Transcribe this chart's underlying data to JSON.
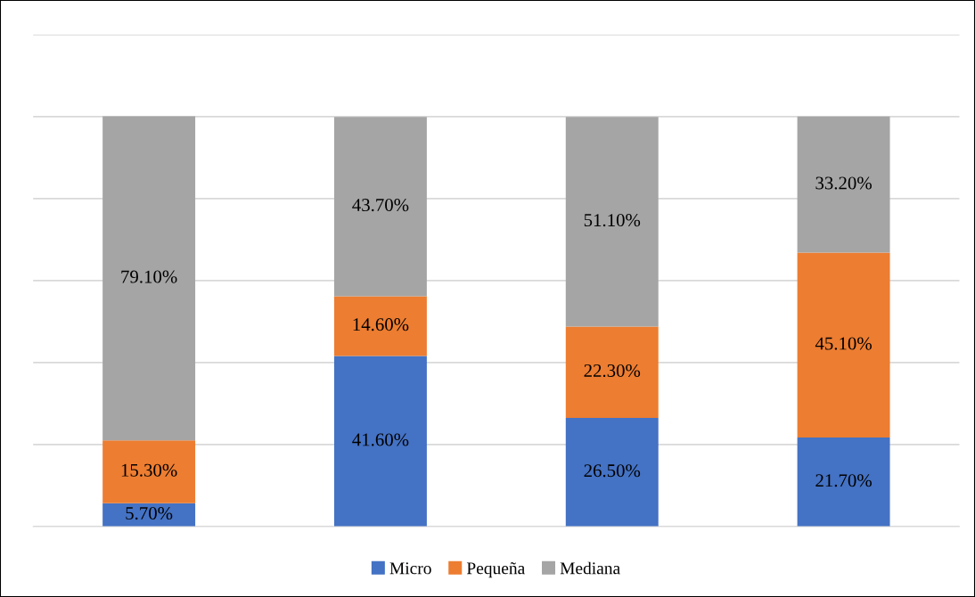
{
  "chart_data": {
    "type": "bar",
    "stacked": true,
    "categories": [
      null,
      null,
      null,
      null
    ],
    "series": [
      {
        "name": "Micro",
        "color": "#4472c4",
        "values": [
          5.7,
          41.6,
          26.5,
          21.7
        ],
        "value_labels": [
          "5.70%",
          "41.60%",
          "26.50%",
          "21.70%"
        ]
      },
      {
        "name": "Pequeña",
        "color": "#ed7d31",
        "values": [
          15.3,
          14.6,
          22.3,
          45.1
        ],
        "value_labels": [
          "15.30%",
          "14.60%",
          "22.30%",
          "45.10%"
        ]
      },
      {
        "name": "Mediana",
        "color": "#a5a5a5",
        "values": [
          79.1,
          43.7,
          51.1,
          33.2
        ],
        "value_labels": [
          "79.10%",
          "43.70%",
          "51.10%",
          "33.20%"
        ]
      }
    ],
    "ylim": [
      0,
      120
    ],
    "yticks": [
      {
        "value": 0,
        "label": null
      },
      {
        "value": 20,
        "label": null
      },
      {
        "value": 40,
        "label": null
      },
      {
        "value": 60,
        "label": null
      },
      {
        "value": 80,
        "label": null
      },
      {
        "value": 100,
        "label": null
      },
      {
        "value": 120,
        "label": null
      }
    ],
    "grid": "y",
    "legend": "bottom"
  }
}
